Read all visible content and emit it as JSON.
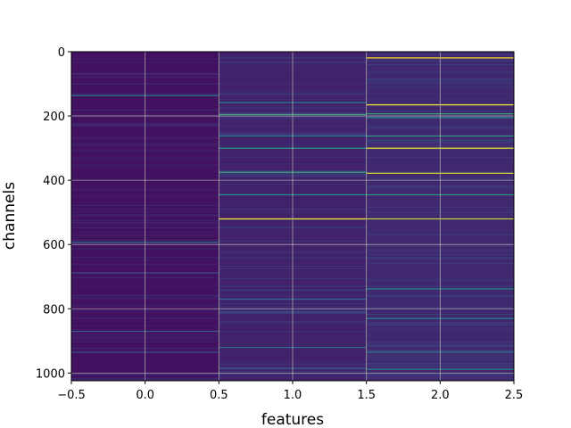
{
  "chart_data": {
    "type": "heatmap",
    "title": "",
    "xlabel": "features",
    "ylabel": "channels",
    "xlim": [
      -0.5,
      2.5
    ],
    "ylim": [
      1024,
      0
    ],
    "y_inverted": true,
    "grid": true,
    "colormap": "viridis",
    "x_ticks": [
      {
        "value": -0.5,
        "label": "−0.5"
      },
      {
        "value": 0.0,
        "label": "0.0"
      },
      {
        "value": 0.5,
        "label": "0.5"
      },
      {
        "value": 1.0,
        "label": "1.0"
      },
      {
        "value": 1.5,
        "label": "1.5"
      },
      {
        "value": 2.0,
        "label": "2.0"
      },
      {
        "value": 2.5,
        "label": "2.5"
      }
    ],
    "y_ticks": [
      {
        "value": 0,
        "label": "0"
      },
      {
        "value": 200,
        "label": "200"
      },
      {
        "value": 400,
        "label": "400"
      },
      {
        "value": 600,
        "label": "600"
      },
      {
        "value": 800,
        "label": "800"
      },
      {
        "value": 1000,
        "label": "1000"
      }
    ],
    "columns": [
      {
        "feature": 0,
        "base_value": 0.05,
        "highlights": [
          {
            "channel": 136,
            "value": 0.45
          },
          {
            "channel": 593,
            "value": 0.4
          },
          {
            "channel": 688,
            "value": 0.25
          },
          {
            "channel": 870,
            "value": 0.3
          },
          {
            "channel": 935,
            "value": 0.25
          }
        ]
      },
      {
        "feature": 1,
        "base_value": 0.1,
        "highlights": [
          {
            "channel": 158,
            "value": 0.45
          },
          {
            "channel": 195,
            "value": 0.6
          },
          {
            "channel": 262,
            "value": 0.4
          },
          {
            "channel": 300,
            "value": 0.55
          },
          {
            "channel": 375,
            "value": 0.6
          },
          {
            "channel": 445,
            "value": 0.5
          },
          {
            "channel": 520,
            "value": 1.0
          },
          {
            "channel": 770,
            "value": 0.35
          },
          {
            "channel": 810,
            "value": 0.3
          },
          {
            "channel": 920,
            "value": 0.4
          },
          {
            "channel": 985,
            "value": 0.35
          }
        ]
      },
      {
        "feature": 2,
        "base_value": 0.12,
        "highlights": [
          {
            "channel": 19,
            "value": 1.0
          },
          {
            "channel": 165,
            "value": 1.0
          },
          {
            "channel": 193,
            "value": 0.6
          },
          {
            "channel": 205,
            "value": 0.5
          },
          {
            "channel": 262,
            "value": 0.55
          },
          {
            "channel": 300,
            "value": 1.0
          },
          {
            "channel": 378,
            "value": 0.95
          },
          {
            "channel": 445,
            "value": 0.55
          },
          {
            "channel": 520,
            "value": 0.9
          },
          {
            "channel": 738,
            "value": 0.45
          },
          {
            "channel": 830,
            "value": 0.45
          },
          {
            "channel": 935,
            "value": 0.4
          },
          {
            "channel": 988,
            "value": 0.45
          }
        ]
      }
    ]
  }
}
